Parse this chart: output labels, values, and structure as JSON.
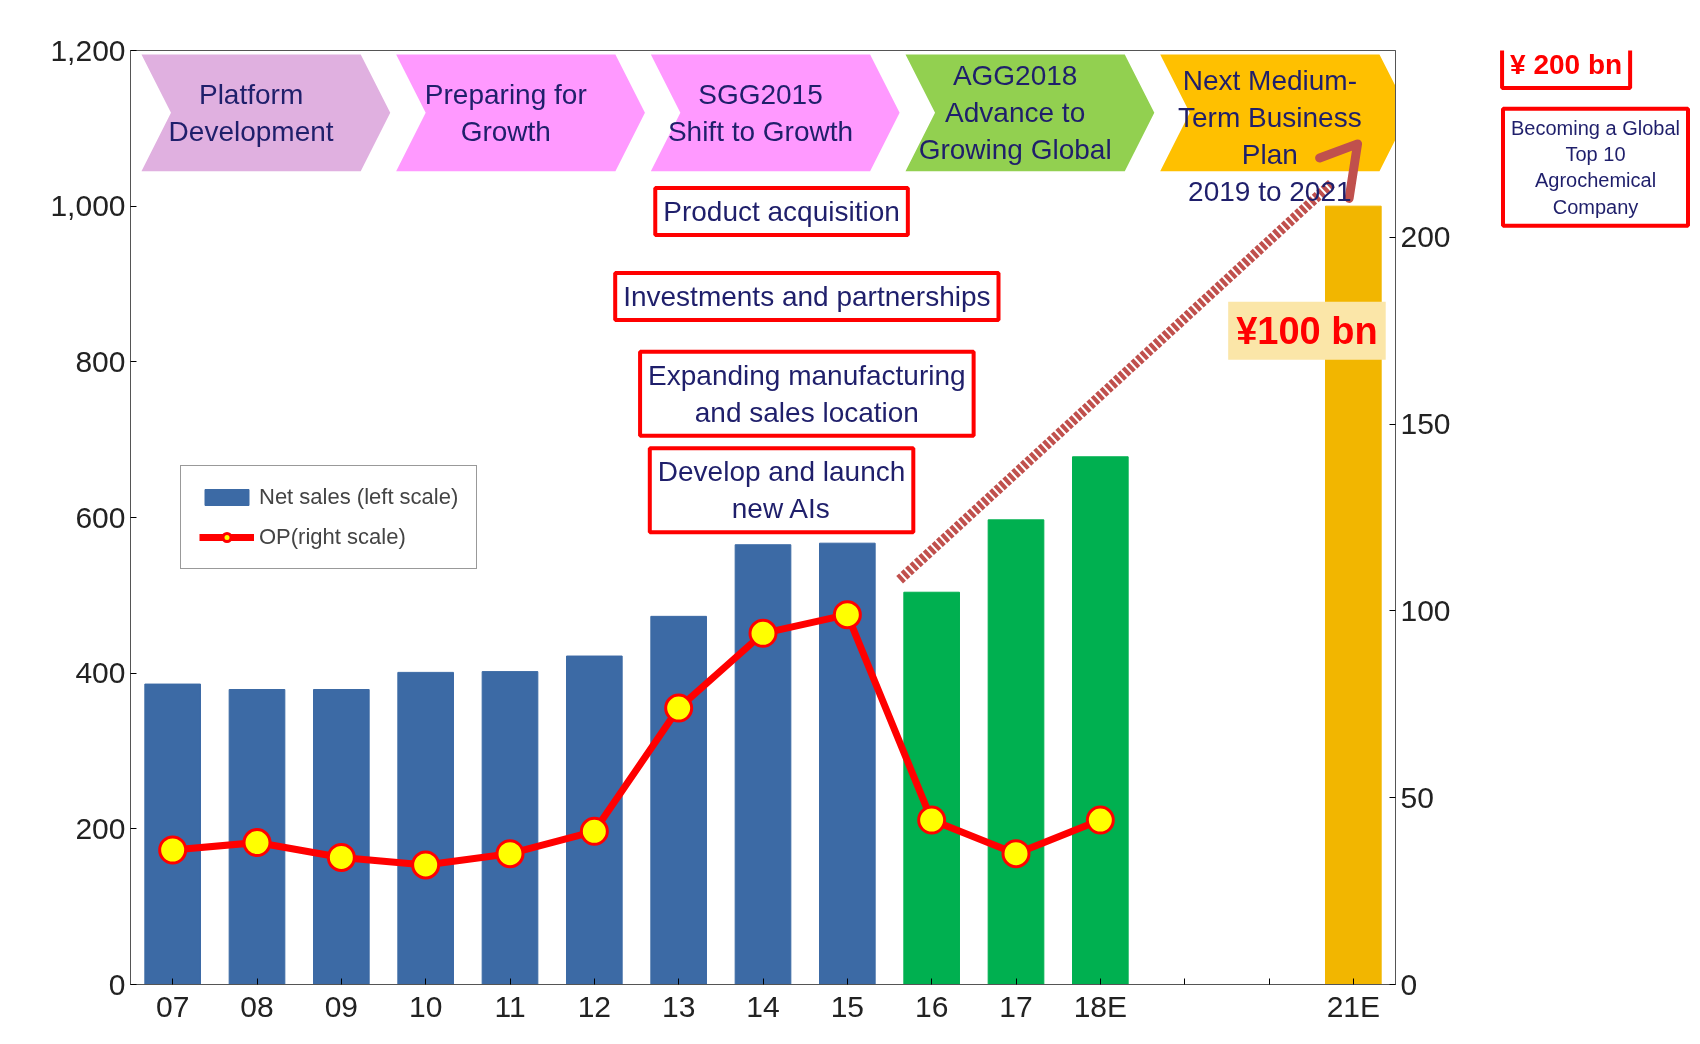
{
  "chart_data": {
    "type": "bar",
    "categories": [
      "07",
      "08",
      "09",
      "10",
      "11",
      "12",
      "13",
      "14",
      "15",
      "16",
      "17",
      "18E",
      null,
      null,
      "21E"
    ],
    "series": [
      {
        "name": "Net sales (left scale)",
        "colors": [
          "#3c6aa5",
          "#3c6aa5",
          "#3c6aa5",
          "#3c6aa5",
          "#3c6aa5",
          "#3c6aa5",
          "#3c6aa5",
          "#3c6aa5",
          "#3c6aa5",
          "#00b050",
          "#00b050",
          "#00b050",
          null,
          null,
          "#f2b600"
        ],
        "values": [
          386,
          379,
          379,
          401,
          402,
          422,
          473,
          565,
          567,
          504,
          597,
          678,
          null,
          null,
          1000
        ]
      },
      {
        "name": "OP(right scale)",
        "type": "line",
        "axis": "y2",
        "color": "#ff0000",
        "values": [
          36,
          38,
          34,
          32,
          35,
          41,
          74,
          94,
          99,
          44,
          35,
          44,
          null,
          null,
          null
        ]
      }
    ],
    "ylim": [
      0,
      1200
    ],
    "yticks": [
      0,
      200,
      400,
      600,
      800,
      {
        "value": 1000,
        "label": "1,000"
      },
      {
        "value": 1200,
        "label": "1,200"
      }
    ],
    "y2lim": [
      0,
      250
    ],
    "y2ticks": [
      0,
      50,
      100,
      150,
      200
    ],
    "marker": "circle",
    "line_style": "solid",
    "legend": "left",
    "grid": false,
    "annotations": [
      "Platform\nDevelopment",
      "Preparing for\nGrowth",
      "SGG2015\nShift to Growth",
      "AGG2018\nAdvance to\nGrowing Global",
      "Next Medium-\nTerm Business\nPlan\n2019 to 2021",
      "Product acquisition",
      "Investments and partnerships",
      "Expanding manufacturing\nand sales location",
      "Develop and launch\nnew AIs",
      "¥100 bn",
      "¥ 200 bn",
      "Becoming a Global\nTop 10\nAgrochemical\nCompany"
    ]
  }
}
